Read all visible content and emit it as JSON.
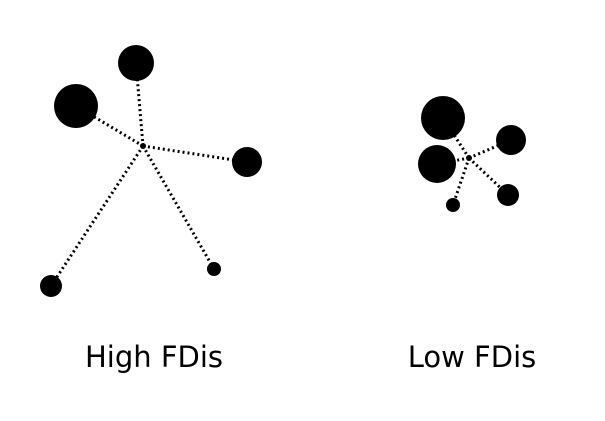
{
  "panels": [
    {
      "caption": "High FDis",
      "points": [
        {
          "size": "medium"
        },
        {
          "size": "large"
        },
        {
          "size": "medium-small"
        },
        {
          "size": "tiny"
        },
        {
          "size": "small"
        }
      ]
    },
    {
      "caption": "Low FDis",
      "points": [
        {
          "size": "large"
        },
        {
          "size": "large"
        },
        {
          "size": "medium-small"
        },
        {
          "size": "small"
        },
        {
          "size": "tiny"
        }
      ]
    }
  ],
  "colors": {
    "point": "#000000",
    "line": "#000000",
    "background": "#ffffff"
  }
}
